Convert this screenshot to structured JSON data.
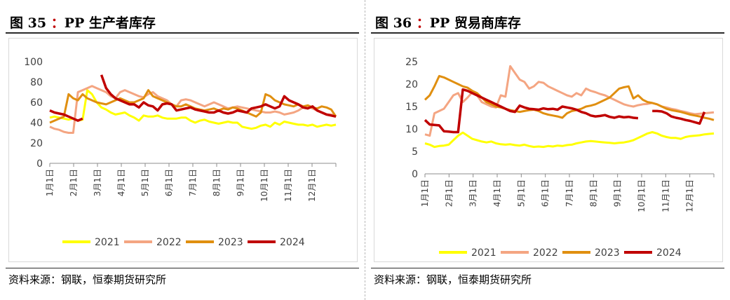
{
  "charts": [
    {
      "title": {
        "prefix": "图 35",
        "colon": "：",
        "text": "PP 生产者库存"
      },
      "source": "资料来源：钢联，恒泰期货研究所"
    },
    {
      "title": {
        "prefix": "图 36",
        "colon": "：",
        "text": "PP 贸易商库存"
      },
      "source": "资料来源：钢联，恒泰期货研究所"
    }
  ],
  "chart_data": [
    {
      "type": "line",
      "title": "PP 生产者库存",
      "xlabel": "",
      "ylabel": "",
      "ylim": [
        0,
        100
      ],
      "yticks": [
        0,
        20,
        40,
        60,
        80,
        100
      ],
      "xticks": [
        "1月1日",
        "2月1日",
        "3月1日",
        "4月1日",
        "5月1日",
        "6月1日",
        "7月1日",
        "8月1日",
        "9月1日",
        "10月1日",
        "11月1日",
        "12月1日"
      ],
      "legend_position": "bottom",
      "series": [
        {
          "name": "2021",
          "color": "#ffff00",
          "values": [
            45,
            46,
            45,
            44,
            43,
            44,
            42,
            43,
            72,
            68,
            60,
            55,
            53,
            50,
            48,
            49,
            50,
            47,
            45,
            42,
            47,
            46,
            46,
            47,
            45,
            44,
            44,
            44,
            45,
            45,
            42,
            40,
            42,
            43,
            41,
            40,
            39,
            40,
            41,
            40,
            40,
            36,
            35,
            34,
            35,
            37,
            38,
            36,
            40,
            38,
            41,
            40,
            39,
            38,
            38,
            37,
            38,
            36,
            37,
            38,
            37,
            38
          ]
        },
        {
          "name": "2022",
          "color": "#f4a582",
          "values": [
            36,
            34,
            33,
            31,
            30,
            30,
            70,
            72,
            74,
            76,
            74,
            72,
            70,
            66,
            64,
            70,
            72,
            70,
            68,
            66,
            65,
            68,
            70,
            66,
            64,
            62,
            58,
            56,
            62,
            63,
            62,
            60,
            58,
            56,
            58,
            60,
            58,
            56,
            54,
            55,
            56,
            55,
            54,
            53,
            52,
            51,
            50,
            50,
            51,
            50,
            48,
            49,
            50,
            52,
            55,
            56,
            54,
            52,
            50,
            48,
            48,
            47
          ]
        },
        {
          "name": "2023",
          "color": "#e08f10",
          "values": [
            40,
            42,
            44,
            46,
            68,
            64,
            62,
            68,
            64,
            62,
            60,
            59,
            58,
            60,
            62,
            64,
            62,
            60,
            60,
            62,
            64,
            72,
            66,
            64,
            62,
            60,
            58,
            56,
            56,
            58,
            56,
            54,
            53,
            52,
            53,
            54,
            52,
            54,
            53,
            55,
            54,
            52,
            50,
            48,
            46,
            50,
            68,
            66,
            62,
            60,
            58,
            57,
            56,
            58,
            56,
            57,
            55,
            54,
            56,
            55,
            53,
            46
          ]
        },
        {
          "name": "2024",
          "color": "#c00000",
          "values": [
            52,
            50,
            49,
            48,
            46,
            44,
            42,
            44,
            null,
            null,
            null,
            87,
            74,
            68,
            64,
            62,
            60,
            58,
            58,
            55,
            60,
            57,
            56,
            52,
            58,
            59,
            58,
            52,
            53,
            54,
            55,
            53,
            52,
            51,
            50,
            50,
            52,
            50,
            49,
            50,
            52,
            51,
            50,
            54,
            55,
            56,
            58,
            56,
            54,
            56,
            66,
            62,
            60,
            58,
            55,
            54,
            56,
            52,
            50,
            48,
            47,
            46
          ]
        }
      ]
    },
    {
      "type": "line",
      "title": "PP 贸易商库存",
      "xlabel": "",
      "ylabel": "",
      "ylim": [
        0,
        25
      ],
      "yticks": [
        0,
        5,
        10,
        15,
        20,
        25
      ],
      "xticks": [
        "1月1日",
        "2月1日",
        "3月1日",
        "4月1日",
        "5月1日",
        "6月1日",
        "7月1日",
        "8月1日",
        "9月1日",
        "10月1日",
        "11月1日",
        "12月1日"
      ],
      "legend_position": "bottom",
      "series": [
        {
          "name": "2021",
          "color": "#ffff00",
          "values": [
            6.8,
            6.5,
            6.0,
            6.2,
            6.3,
            6.5,
            7.5,
            8.5,
            9.2,
            8.5,
            7.8,
            7.5,
            7.2,
            7.0,
            7.2,
            6.8,
            6.6,
            6.5,
            6.6,
            6.4,
            6.3,
            6.5,
            6.2,
            6.0,
            6.1,
            6.0,
            6.2,
            6.1,
            6.3,
            6.2,
            6.4,
            6.5,
            6.8,
            7.0,
            7.2,
            7.3,
            7.2,
            7.1,
            7.0,
            6.9,
            6.8,
            6.9,
            7.0,
            7.2,
            7.5,
            8.0,
            8.5,
            9.0,
            9.3,
            9.0,
            8.5,
            8.2,
            8.0,
            8.0,
            7.8,
            8.2,
            8.4,
            8.5,
            8.6,
            8.8,
            8.9,
            9.0
          ]
        },
        {
          "name": "2022",
          "color": "#f4a582",
          "values": [
            8.8,
            8.5,
            13.5,
            14.0,
            14.5,
            16.0,
            17.5,
            18.0,
            16.0,
            17.0,
            18.2,
            17.5,
            16.0,
            15.5,
            15.0,
            14.8,
            17.5,
            17.2,
            24.0,
            22.5,
            21.0,
            20.5,
            19.0,
            19.5,
            20.5,
            20.3,
            19.5,
            19.0,
            18.5,
            18.0,
            17.5,
            17.2,
            18.0,
            17.5,
            19.0,
            18.5,
            18.2,
            17.8,
            17.5,
            17.0,
            16.5,
            16.0,
            15.5,
            15.2,
            15.0,
            15.3,
            15.5,
            15.6,
            15.8,
            15.5,
            15.0,
            14.8,
            14.5,
            14.3,
            14.0,
            13.8,
            13.5,
            13.3,
            13.4,
            13.5,
            13.6,
            13.7
          ]
        },
        {
          "name": "2023",
          "color": "#e08f10",
          "values": [
            16.5,
            17.5,
            19.5,
            21.8,
            21.5,
            21.0,
            20.5,
            20.0,
            19.5,
            19.2,
            18.5,
            18.0,
            17.0,
            16.0,
            15.5,
            15.0,
            14.8,
            14.5,
            14.2,
            14.0,
            13.8,
            14.0,
            14.2,
            14.3,
            14.0,
            13.5,
            13.2,
            13.0,
            12.8,
            12.5,
            13.5,
            14.0,
            14.2,
            14.5,
            15.0,
            15.2,
            15.5,
            16.0,
            16.5,
            17.0,
            18.0,
            19.0,
            19.3,
            19.5,
            16.8,
            17.5,
            16.5,
            16.0,
            15.8,
            15.5,
            15.0,
            14.5,
            14.2,
            14.0,
            13.8,
            13.5,
            13.2,
            13.0,
            12.8,
            12.5,
            12.3,
            12.0
          ]
        },
        {
          "name": "2024",
          "color": "#c00000",
          "values": [
            12.0,
            11.0,
            10.9,
            10.8,
            9.5,
            9.4,
            9.3,
            9.3,
            18.8,
            18.5,
            18.0,
            17.5,
            17.0,
            16.5,
            16.0,
            15.5,
            15.0,
            14.5,
            14.0,
            13.8,
            15.2,
            14.8,
            14.5,
            14.4,
            14.3,
            14.6,
            14.4,
            14.5,
            14.3,
            15.0,
            14.8,
            14.6,
            14.3,
            13.8,
            13.5,
            13.0,
            12.8,
            12.9,
            13.1,
            12.7,
            12.5,
            12.8,
            12.6,
            12.7,
            12.5,
            12.4,
            null,
            null,
            14.0,
            14.0,
            13.9,
            13.5,
            12.8,
            12.5,
            12.3,
            12.0,
            11.8,
            11.5,
            11.2,
            13.8,
            null,
            null
          ]
        }
      ]
    }
  ]
}
